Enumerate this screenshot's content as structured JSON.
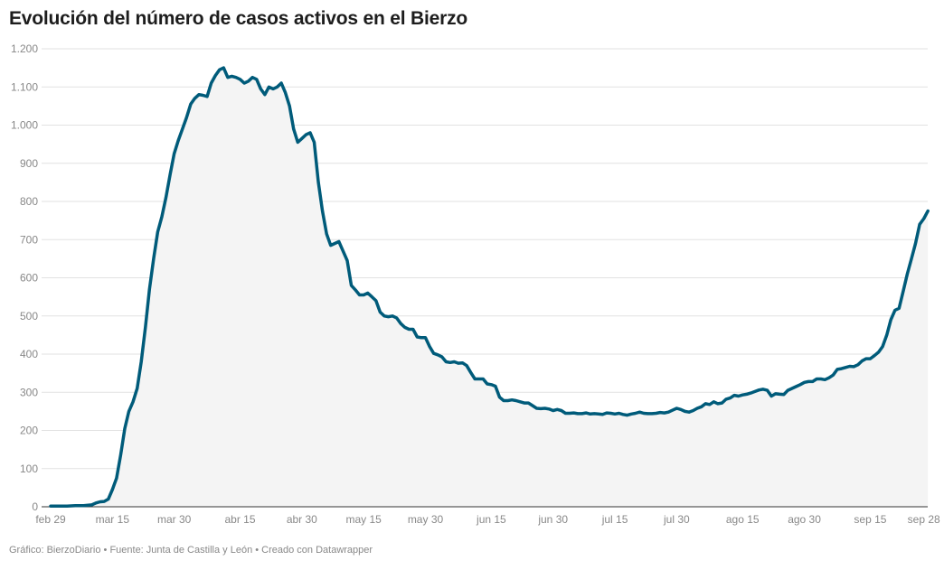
{
  "title": "Evolución del número de casos activos en el Bierzo",
  "footer": "Gráfico: BierzoDiario • Fuente: Junta de Castilla y León • Creado con Datawrapper",
  "chart_data": {
    "type": "area",
    "title": "Evolución del número de casos activos en el Bierzo",
    "xlabel": "",
    "ylabel": "",
    "ylim": [
      0,
      1200
    ],
    "grid": true,
    "line_color": "#005b7a",
    "fill_color": "#f4f4f4",
    "y_ticks": [
      0,
      100,
      200,
      300,
      400,
      500,
      600,
      700,
      800,
      900,
      1000,
      1100,
      1200
    ],
    "y_tick_labels": [
      "0",
      "100",
      "200",
      "300",
      "400",
      "500",
      "600",
      "700",
      "800",
      "900",
      "1.000",
      "1.100",
      "1.200"
    ],
    "x_ticks": [
      {
        "day": 0,
        "label": "feb 29"
      },
      {
        "day": 15,
        "label": "mar 15"
      },
      {
        "day": 30,
        "label": "mar 30"
      },
      {
        "day": 46,
        "label": "abr 15"
      },
      {
        "day": 61,
        "label": "abr 30"
      },
      {
        "day": 76,
        "label": "may 15"
      },
      {
        "day": 91,
        "label": "may 30"
      },
      {
        "day": 107,
        "label": "jun 15"
      },
      {
        "day": 122,
        "label": "jun 30"
      },
      {
        "day": 137,
        "label": "jul 15"
      },
      {
        "day": 152,
        "label": "jul 30"
      },
      {
        "day": 168,
        "label": "ago 15"
      },
      {
        "day": 183,
        "label": "ago 30"
      },
      {
        "day": 199,
        "label": "sep 15"
      },
      {
        "day": 212,
        "label": "sep 28"
      }
    ],
    "series": [
      {
        "points": [
          [
            0,
            2
          ],
          [
            2,
            2
          ],
          [
            4,
            2
          ],
          [
            6,
            3
          ],
          [
            8,
            3
          ],
          [
            10,
            5
          ],
          [
            11,
            10
          ],
          [
            12,
            13
          ],
          [
            13,
            14
          ],
          [
            14,
            20
          ],
          [
            15,
            45
          ],
          [
            16,
            75
          ],
          [
            17,
            135
          ],
          [
            18,
            205
          ],
          [
            19,
            250
          ],
          [
            20,
            275
          ],
          [
            21,
            310
          ],
          [
            22,
            380
          ],
          [
            23,
            470
          ],
          [
            24,
            570
          ],
          [
            25,
            650
          ],
          [
            26,
            720
          ],
          [
            27,
            760
          ],
          [
            28,
            810
          ],
          [
            29,
            870
          ],
          [
            30,
            925
          ],
          [
            31,
            960
          ],
          [
            32,
            990
          ],
          [
            33,
            1020
          ],
          [
            34,
            1055
          ],
          [
            35,
            1070
          ],
          [
            36,
            1080
          ],
          [
            37,
            1078
          ],
          [
            38,
            1075
          ],
          [
            39,
            1110
          ],
          [
            40,
            1130
          ],
          [
            41,
            1145
          ],
          [
            42,
            1150
          ],
          [
            43,
            1125
          ],
          [
            44,
            1128
          ],
          [
            45,
            1125
          ],
          [
            46,
            1120
          ],
          [
            47,
            1110
          ],
          [
            48,
            1115
          ],
          [
            49,
            1125
          ],
          [
            50,
            1120
          ],
          [
            51,
            1095
          ],
          [
            52,
            1080
          ],
          [
            53,
            1100
          ],
          [
            54,
            1095
          ],
          [
            55,
            1100
          ],
          [
            56,
            1110
          ],
          [
            57,
            1085
          ],
          [
            58,
            1050
          ],
          [
            59,
            990
          ],
          [
            60,
            955
          ],
          [
            61,
            965
          ],
          [
            62,
            975
          ],
          [
            63,
            980
          ],
          [
            64,
            955
          ],
          [
            65,
            850
          ],
          [
            66,
            775
          ],
          [
            67,
            715
          ],
          [
            68,
            685
          ],
          [
            69,
            690
          ],
          [
            70,
            695
          ],
          [
            71,
            670
          ],
          [
            72,
            645
          ],
          [
            73,
            580
          ],
          [
            74,
            568
          ],
          [
            75,
            555
          ],
          [
            76,
            555
          ],
          [
            77,
            560
          ],
          [
            78,
            550
          ],
          [
            79,
            540
          ],
          [
            80,
            510
          ],
          [
            81,
            500
          ],
          [
            82,
            498
          ],
          [
            83,
            500
          ],
          [
            84,
            495
          ],
          [
            85,
            480
          ],
          [
            86,
            470
          ],
          [
            87,
            465
          ],
          [
            88,
            465
          ],
          [
            89,
            445
          ],
          [
            90,
            443
          ],
          [
            91,
            443
          ],
          [
            92,
            420
          ],
          [
            93,
            402
          ],
          [
            94,
            398
          ],
          [
            95,
            393
          ],
          [
            96,
            380
          ],
          [
            97,
            378
          ],
          [
            98,
            380
          ],
          [
            99,
            376
          ],
          [
            100,
            377
          ],
          [
            101,
            370
          ],
          [
            102,
            352
          ],
          [
            103,
            335
          ],
          [
            104,
            335
          ],
          [
            105,
            335
          ],
          [
            106,
            322
          ],
          [
            107,
            320
          ],
          [
            108,
            316
          ],
          [
            109,
            287
          ],
          [
            110,
            278
          ],
          [
            111,
            278
          ],
          [
            112,
            280
          ],
          [
            113,
            278
          ],
          [
            114,
            275
          ],
          [
            115,
            272
          ],
          [
            116,
            272
          ],
          [
            117,
            265
          ],
          [
            118,
            258
          ],
          [
            119,
            257
          ],
          [
            120,
            258
          ],
          [
            121,
            256
          ],
          [
            122,
            252
          ],
          [
            123,
            255
          ],
          [
            124,
            252
          ],
          [
            125,
            245
          ],
          [
            126,
            245
          ],
          [
            127,
            246
          ],
          [
            128,
            244
          ],
          [
            129,
            244
          ],
          [
            130,
            246
          ],
          [
            131,
            243
          ],
          [
            132,
            244
          ],
          [
            133,
            243
          ],
          [
            134,
            242
          ],
          [
            135,
            246
          ],
          [
            136,
            245
          ],
          [
            137,
            243
          ],
          [
            138,
            245
          ],
          [
            139,
            242
          ],
          [
            140,
            240
          ],
          [
            141,
            243
          ],
          [
            142,
            245
          ],
          [
            143,
            248
          ],
          [
            144,
            245
          ],
          [
            145,
            244
          ],
          [
            146,
            244
          ],
          [
            147,
            245
          ],
          [
            148,
            247
          ],
          [
            149,
            246
          ],
          [
            150,
            248
          ],
          [
            151,
            253
          ],
          [
            152,
            258
          ],
          [
            153,
            255
          ],
          [
            154,
            250
          ],
          [
            155,
            248
          ],
          [
            156,
            252
          ],
          [
            157,
            258
          ],
          [
            158,
            262
          ],
          [
            159,
            270
          ],
          [
            160,
            268
          ],
          [
            161,
            275
          ],
          [
            162,
            270
          ],
          [
            163,
            272
          ],
          [
            164,
            282
          ],
          [
            165,
            285
          ],
          [
            166,
            292
          ],
          [
            167,
            290
          ],
          [
            168,
            293
          ],
          [
            169,
            295
          ],
          [
            170,
            298
          ],
          [
            171,
            302
          ],
          [
            172,
            306
          ],
          [
            173,
            308
          ],
          [
            174,
            305
          ],
          [
            175,
            290
          ],
          [
            176,
            296
          ],
          [
            177,
            295
          ],
          [
            178,
            294
          ],
          [
            179,
            305
          ],
          [
            180,
            310
          ],
          [
            181,
            315
          ],
          [
            182,
            320
          ],
          [
            183,
            326
          ],
          [
            184,
            328
          ],
          [
            185,
            328
          ],
          [
            186,
            335
          ],
          [
            187,
            335
          ],
          [
            188,
            333
          ],
          [
            189,
            338
          ],
          [
            190,
            345
          ],
          [
            191,
            360
          ],
          [
            192,
            362
          ],
          [
            193,
            365
          ],
          [
            194,
            368
          ],
          [
            195,
            367
          ],
          [
            196,
            372
          ],
          [
            197,
            382
          ],
          [
            198,
            388
          ],
          [
            199,
            388
          ],
          [
            200,
            396
          ],
          [
            201,
            405
          ],
          [
            202,
            420
          ],
          [
            203,
            450
          ],
          [
            204,
            490
          ],
          [
            205,
            515
          ],
          [
            206,
            520
          ],
          [
            207,
            565
          ],
          [
            208,
            610
          ],
          [
            209,
            650
          ],
          [
            210,
            690
          ],
          [
            211,
            740
          ],
          [
            212,
            755
          ],
          [
            213,
            775
          ]
        ]
      }
    ]
  }
}
